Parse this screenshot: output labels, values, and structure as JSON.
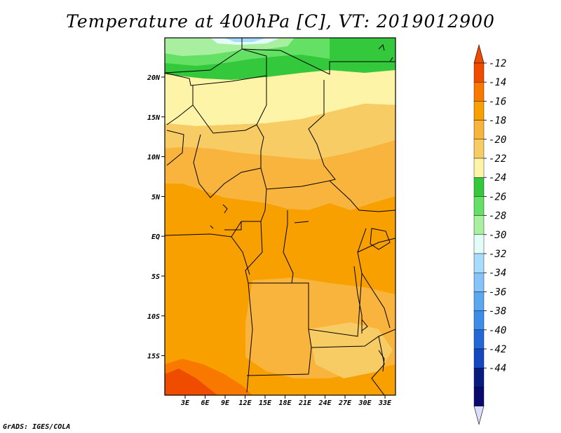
{
  "title": "Temperature at 400hPa [C], VT: 2019012900",
  "footer": "GrADS: IGES/COLA",
  "map": {
    "lon_labels": [
      "3E",
      "6E",
      "9E",
      "12E",
      "15E",
      "18E",
      "21E",
      "24E",
      "27E",
      "30E",
      "33E"
    ],
    "lat_labels": [
      "20N",
      "15N",
      "10N",
      "5N",
      "EQ",
      "5S",
      "10S",
      "15S"
    ]
  },
  "colorbar": {
    "labels": [
      "-12",
      "-14",
      "-16",
      "-18",
      "-20",
      "-22",
      "-24",
      "-26",
      "-28",
      "-30",
      "-32",
      "-34",
      "-36",
      "-38",
      "-40",
      "-42",
      "-44"
    ],
    "colors": [
      "#f04c00",
      "#f87800",
      "#f8a000",
      "#f8b43c",
      "#f8cc64",
      "#fef4a8",
      "#34c83c",
      "#64e064",
      "#a8f0a0",
      "#e4fcf8",
      "#a8dcfc",
      "#84c4f8",
      "#5ca8f0",
      "#3c8ce8",
      "#2468d8",
      "#1448c0",
      "#081c80",
      "#0a0a6e"
    ],
    "top_arrow_color": "#f04c00",
    "bottom_arrow_color": "#dcdcfc"
  }
}
